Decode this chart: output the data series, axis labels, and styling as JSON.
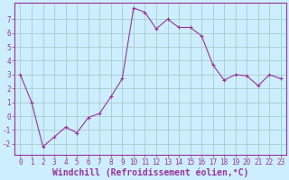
{
  "x": [
    0,
    1,
    2,
    3,
    4,
    5,
    6,
    7,
    8,
    9,
    10,
    11,
    12,
    13,
    14,
    15,
    16,
    17,
    18,
    19,
    20,
    21,
    22,
    23
  ],
  "y": [
    3.0,
    1.0,
    -2.2,
    -1.5,
    -0.8,
    -1.2,
    -0.1,
    0.2,
    1.4,
    2.7,
    7.8,
    7.5,
    6.3,
    7.0,
    6.4,
    6.4,
    5.8,
    3.7,
    2.6,
    3.0,
    2.9,
    2.2,
    3.0,
    2.7
  ],
  "line_color": "#993399",
  "marker": "+",
  "bg_color": "#cceeff",
  "grid_color": "#aacccc",
  "xlabel": "Windchill (Refroidissement éolien,°C)",
  "xlabel_color": "#993399",
  "ylim": [
    -2.8,
    8.2
  ],
  "yticks": [
    -2,
    -1,
    0,
    1,
    2,
    3,
    4,
    5,
    6,
    7
  ],
  "xticks": [
    0,
    1,
    2,
    3,
    4,
    5,
    6,
    7,
    8,
    9,
    10,
    11,
    12,
    13,
    14,
    15,
    16,
    17,
    18,
    19,
    20,
    21,
    22,
    23
  ],
  "tick_color": "#993399",
  "tick_fontsize": 5.5,
  "xlabel_fontsize": 7.0,
  "axis_color": "#993399"
}
